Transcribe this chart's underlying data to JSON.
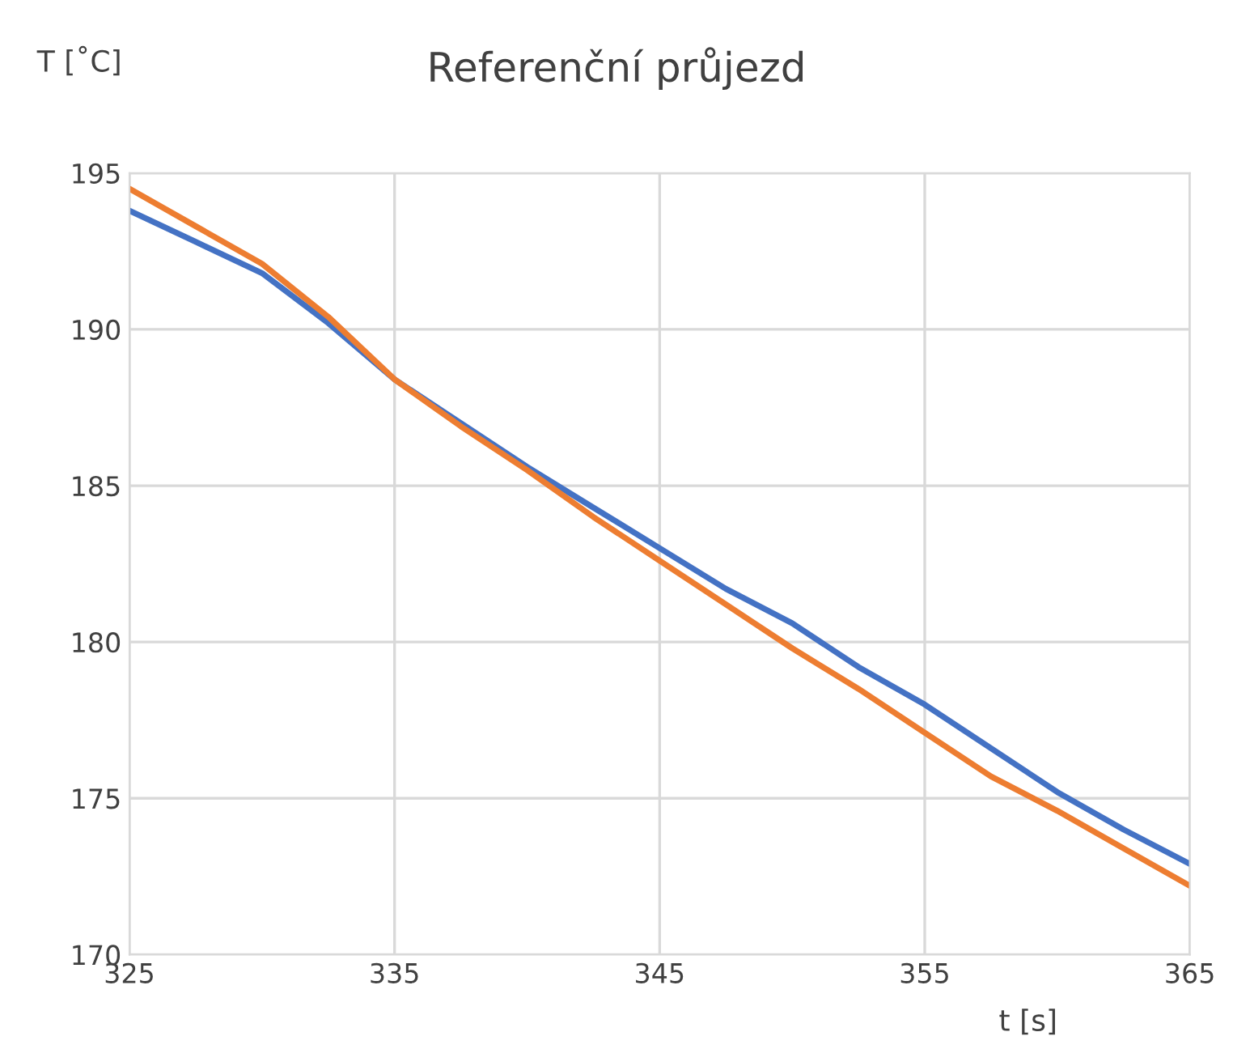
{
  "chart_data": {
    "type": "line",
    "title": "Referenční průjezd",
    "xlabel": "t [s]",
    "ylabel": "T [˚C]",
    "x": [
      325,
      327.5,
      330,
      332.5,
      335,
      337.5,
      340,
      342.5,
      345,
      347.5,
      350,
      352.5,
      355,
      357.5,
      360,
      362.5,
      365
    ],
    "series": [
      {
        "color": "#4472c4",
        "values": [
          193.8,
          192.8,
          191.8,
          190.2,
          188.4,
          187.0,
          185.6,
          184.3,
          183.0,
          181.7,
          180.6,
          179.2,
          178.0,
          176.6,
          175.2,
          174.0,
          172.9
        ]
      },
      {
        "color": "#ed7d31",
        "values": [
          194.5,
          193.3,
          192.1,
          190.4,
          188.4,
          186.9,
          185.5,
          184.0,
          182.6,
          181.2,
          179.8,
          178.5,
          177.1,
          175.7,
          174.6,
          173.4,
          172.2
        ]
      }
    ],
    "xlim": [
      325,
      365
    ],
    "ylim": [
      170,
      195
    ],
    "xticks": [
      325,
      335,
      345,
      355,
      365
    ],
    "yticks": [
      170,
      175,
      180,
      185,
      190,
      195
    ],
    "grid": true,
    "line_style": "solid",
    "marker": "none"
  }
}
